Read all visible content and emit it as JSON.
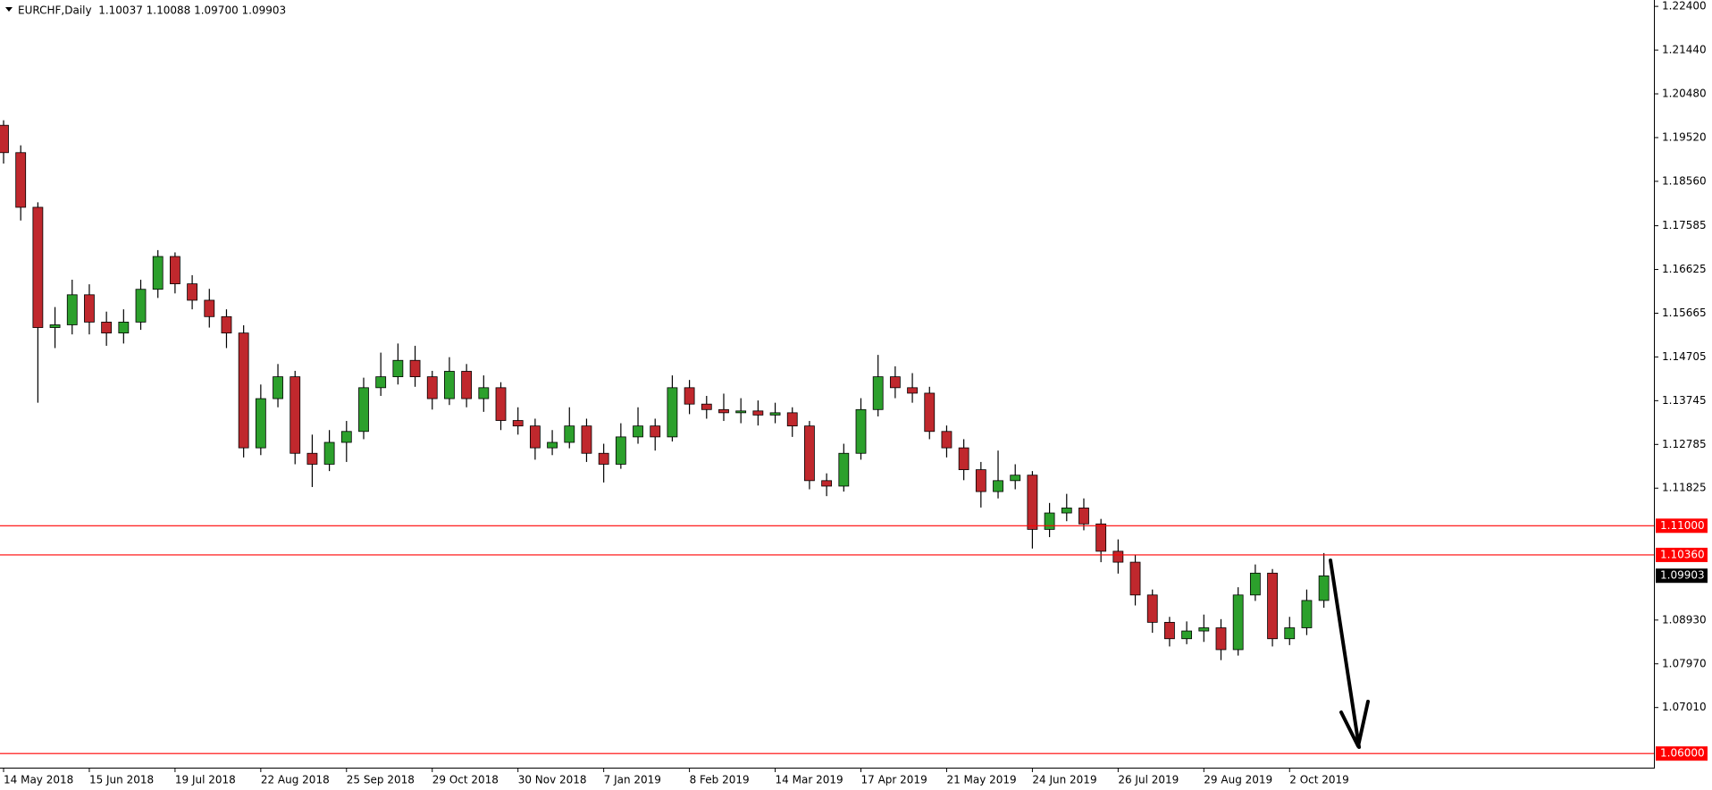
{
  "chart_data": {
    "type": "candlestick",
    "title": "EURCHF,Daily  1.10037 1.10088 1.09700 1.09903",
    "categories": [
      "14 May 2018",
      null,
      null,
      null,
      null,
      "15 Jun 2018",
      null,
      null,
      null,
      null,
      "19 Jul 2018",
      null,
      null,
      null,
      null,
      "22 Aug 2018",
      null,
      null,
      null,
      null,
      "25 Sep 2018",
      null,
      null,
      null,
      null,
      "29 Oct 2018",
      null,
      null,
      null,
      null,
      "30 Nov 2018",
      null,
      null,
      null,
      null,
      "7 Jan 2019",
      null,
      null,
      null,
      null,
      "8 Feb 2019",
      null,
      null,
      null,
      null,
      "14 Mar 2019",
      null,
      null,
      null,
      null,
      "17 Apr 2019",
      null,
      null,
      null,
      null,
      "21 May 2019",
      null,
      null,
      null,
      null,
      "24 Jun 2019",
      null,
      null,
      null,
      null,
      "26 Jul 2019",
      null,
      null,
      null,
      null,
      "29 Aug 2019",
      null,
      null,
      null,
      null,
      "2 Oct 2019",
      null,
      null
    ],
    "open": [
      1.1979,
      1.1919,
      1.1799,
      1.1535,
      1.1541,
      1.1607,
      1.1547,
      1.1523,
      1.1547,
      1.1619,
      1.1691,
      1.1631,
      1.1595,
      1.1559,
      1.1523,
      1.1271,
      1.1379,
      1.1427,
      1.1259,
      1.1235,
      1.1283,
      1.1307,
      1.1403,
      1.1427,
      1.1463,
      1.1427,
      1.1379,
      1.1439,
      1.1379,
      1.1403,
      1.1331,
      1.1319,
      1.1271,
      1.1283,
      1.1319,
      1.1259,
      1.1235,
      1.1295,
      1.1319,
      1.1295,
      1.1403,
      1.1367,
      1.1355,
      1.1348,
      1.1352,
      1.1343,
      1.1348,
      1.1319,
      1.1199,
      1.1187,
      1.1259,
      1.1355,
      1.1427,
      1.1403,
      1.1391,
      1.1307,
      1.1271,
      1.1223,
      1.1175,
      1.1199,
      1.1211,
      1.1092,
      1.1128,
      1.1139,
      1.1104,
      1.1044,
      1.102,
      1.0948,
      1.0888,
      1.0852,
      1.0869,
      1.0876,
      1.0828,
      1.0948,
      1.0996,
      1.0852,
      1.0876,
      1.0936
    ],
    "high": [
      1.199,
      1.1935,
      1.181,
      1.158,
      1.164,
      1.163,
      1.157,
      1.1575,
      1.164,
      1.1705,
      1.17,
      1.165,
      1.162,
      1.1575,
      1.154,
      1.141,
      1.1455,
      1.144,
      1.13,
      1.131,
      1.133,
      1.1425,
      1.148,
      1.15,
      1.1495,
      1.144,
      1.147,
      1.1455,
      1.143,
      1.1415,
      1.136,
      1.1335,
      1.131,
      1.136,
      1.1335,
      1.128,
      1.1325,
      1.136,
      1.1335,
      1.143,
      1.142,
      1.1385,
      1.139,
      1.138,
      1.1375,
      1.137,
      1.136,
      1.133,
      1.1215,
      1.128,
      1.138,
      1.1475,
      1.145,
      1.1435,
      1.1405,
      1.132,
      1.129,
      1.124,
      1.1265,
      1.1235,
      1.122,
      1.115,
      1.117,
      1.116,
      1.1115,
      1.107,
      1.1035,
      1.096,
      1.09,
      1.089,
      1.0905,
      1.0895,
      1.0965,
      1.1015,
      1.1005,
      1.09,
      1.096,
      1.104
    ],
    "low": [
      1.1895,
      1.177,
      1.137,
      1.149,
      1.152,
      1.152,
      1.1495,
      1.15,
      1.153,
      1.16,
      1.161,
      1.1575,
      1.1535,
      1.149,
      1.125,
      1.1255,
      1.136,
      1.1235,
      1.1185,
      1.122,
      1.124,
      1.129,
      1.1385,
      1.141,
      1.1405,
      1.1355,
      1.1365,
      1.136,
      1.135,
      1.131,
      1.13,
      1.1245,
      1.1255,
      1.127,
      1.124,
      1.1195,
      1.1225,
      1.128,
      1.1265,
      1.1285,
      1.1345,
      1.1335,
      1.133,
      1.1325,
      1.132,
      1.1325,
      1.1295,
      1.118,
      1.1165,
      1.1175,
      1.1245,
      1.134,
      1.138,
      1.137,
      1.129,
      1.125,
      1.12,
      1.114,
      1.116,
      1.118,
      1.105,
      1.1075,
      1.111,
      1.109,
      1.102,
      1.0995,
      1.0925,
      1.0865,
      1.0835,
      1.084,
      1.0845,
      1.0805,
      1.0815,
      1.0935,
      1.0835,
      1.0838,
      1.086,
      1.092
    ],
    "close": [
      1.1919,
      1.1799,
      1.1535,
      1.1541,
      1.1607,
      1.1547,
      1.1523,
      1.1547,
      1.1619,
      1.1691,
      1.1631,
      1.1595,
      1.1559,
      1.1523,
      1.1271,
      1.1379,
      1.1427,
      1.1259,
      1.1235,
      1.1283,
      1.1307,
      1.1403,
      1.1427,
      1.1463,
      1.1427,
      1.1379,
      1.1439,
      1.1379,
      1.1403,
      1.1331,
      1.1319,
      1.1271,
      1.1283,
      1.1319,
      1.1259,
      1.1235,
      1.1295,
      1.1319,
      1.1295,
      1.1403,
      1.1367,
      1.1355,
      1.1348,
      1.1352,
      1.1343,
      1.1348,
      1.1319,
      1.1199,
      1.1187,
      1.1259,
      1.1355,
      1.1427,
      1.1403,
      1.1391,
      1.1307,
      1.1271,
      1.1223,
      1.1175,
      1.1199,
      1.1211,
      1.1092,
      1.1128,
      1.1139,
      1.1104,
      1.1044,
      1.102,
      1.0948,
      1.0888,
      1.0852,
      1.0869,
      1.0876,
      1.0828,
      1.0948,
      1.0996,
      1.0852,
      1.0876,
      1.0936,
      1.099
    ],
    "up_color": "#2ca02c",
    "down_color": "#c0282d",
    "wick_color": "#000000",
    "ylim": [
      1.0569,
      1.2254
    ],
    "yticks": [
      {
        "value": 1.224,
        "label": "1.22400"
      },
      {
        "value": 1.2144,
        "label": "1.21440"
      },
      {
        "value": 1.2048,
        "label": "1.20480"
      },
      {
        "value": 1.1952,
        "label": "1.19520"
      },
      {
        "value": 1.1856,
        "label": "1.18560"
      },
      {
        "value": 1.17585,
        "label": "1.17585"
      },
      {
        "value": 1.16625,
        "label": "1.16625"
      },
      {
        "value": 1.15665,
        "label": "1.15665"
      },
      {
        "value": 1.14705,
        "label": "1.14705"
      },
      {
        "value": 1.13745,
        "label": "1.13745"
      },
      {
        "value": 1.12785,
        "label": "1.12785"
      },
      {
        "value": 1.11825,
        "label": "1.11825"
      },
      {
        "value": 1.0893,
        "label": "1.08930"
      },
      {
        "value": 1.0797,
        "label": "1.07970"
      },
      {
        "value": 1.0701,
        "label": "1.07010"
      }
    ],
    "levels": [
      {
        "value": 1.11,
        "label": "1.11000"
      },
      {
        "value": 1.1036,
        "label": "1.10360"
      },
      {
        "value": 1.06,
        "label": "1.06000"
      }
    ],
    "level_color": "#ff0000",
    "last_price": {
      "value": 1.09903,
      "label": "1.09903"
    },
    "grid": false
  }
}
